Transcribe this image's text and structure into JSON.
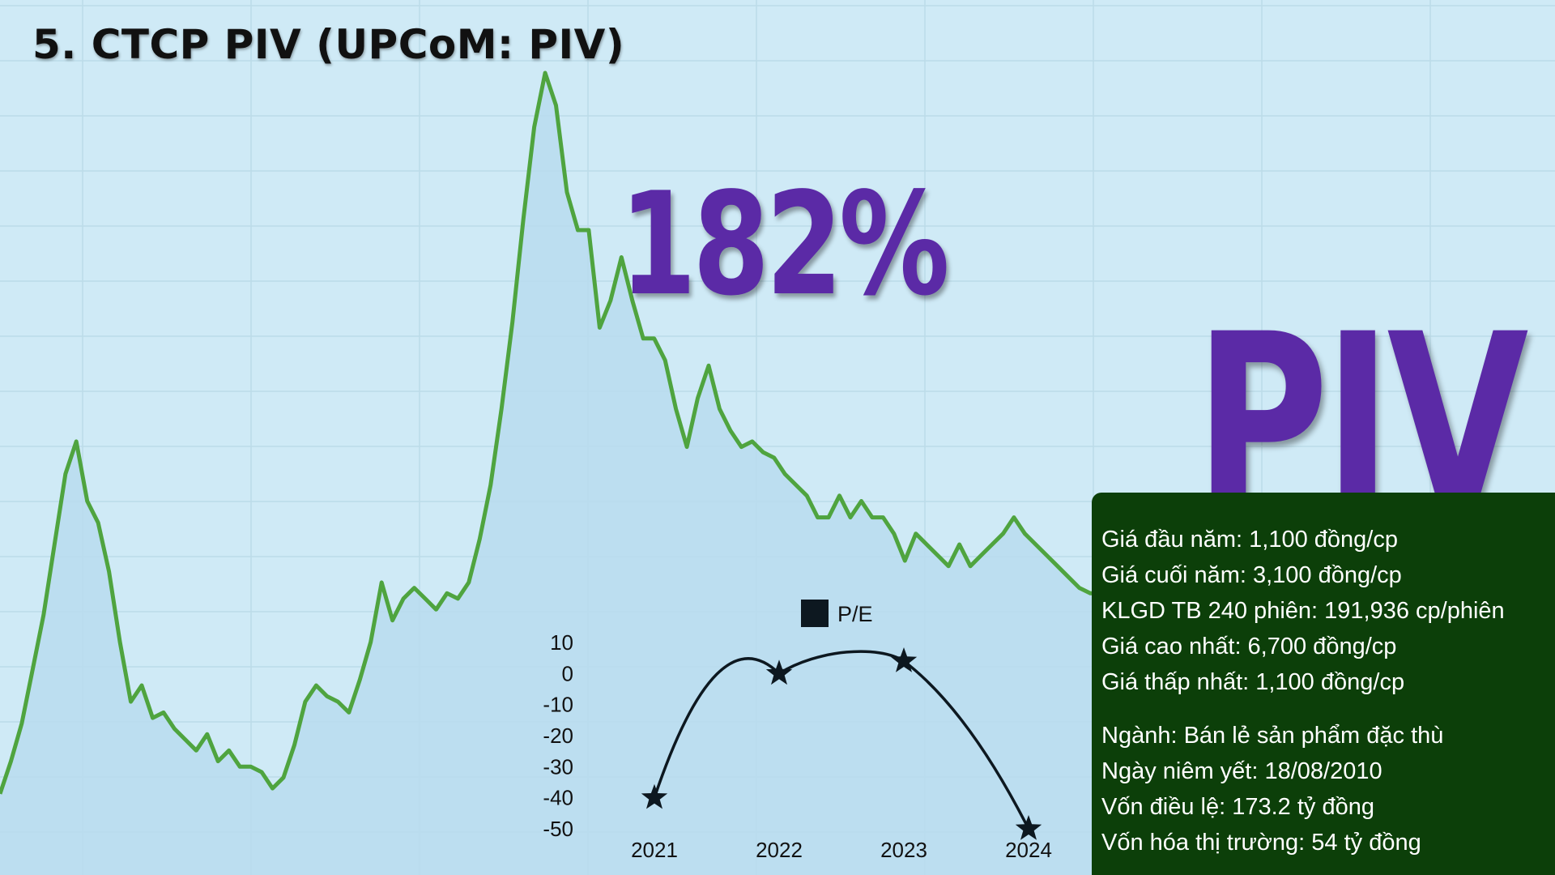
{
  "title": "5. CTCP PIV (UPCoM: PIV)",
  "highlight_percent": "182%",
  "ticker": "PIV",
  "info": {
    "lines_a": [
      "Giá đầu năm: 1,100 đồng/cp",
      "Giá cuối năm: 3,100 đồng/cp",
      "KLGD TB 240 phiên: 191,936 cp/phiên",
      "Giá cao nhất: 6,700 đồng/cp",
      "Giá thấp nhất: 1,100 đồng/cp"
    ],
    "lines_b": [
      "Ngành: Bán lẻ sản phẩm đặc thù",
      "Ngày niêm yết: 18/08/2010",
      "Vốn điều lệ: 173.2 tỷ đồng",
      "Vốn hóa thị trường: 54 tỷ đồng"
    ]
  },
  "colors": {
    "background": "#cfeaf6",
    "price_line": "#4fa43f",
    "area_fill": "#b9dcee",
    "accent_purple": "#5b2aa6",
    "info_box": "#0c3f09",
    "pe_line": "#0d1820"
  },
  "chart_data": [
    {
      "type": "area",
      "title": "",
      "xlabel": "",
      "ylabel": "",
      "grid": true,
      "y_scale": "relative (no axis printed)",
      "values": [
        0.09,
        0.15,
        0.22,
        0.32,
        0.42,
        0.55,
        0.68,
        0.74,
        0.63,
        0.59,
        0.5,
        0.37,
        0.26,
        0.29,
        0.23,
        0.24,
        0.21,
        0.19,
        0.17,
        0.2,
        0.15,
        0.17,
        0.14,
        0.14,
        0.13,
        0.1,
        0.12,
        0.18,
        0.26,
        0.29,
        0.27,
        0.26,
        0.24,
        0.3,
        0.37,
        0.48,
        0.41,
        0.45,
        0.47,
        0.45,
        0.43,
        0.46,
        0.45,
        0.48,
        0.56,
        0.66,
        0.8,
        0.96,
        1.15,
        1.32,
        1.42,
        1.36,
        1.2,
        1.13,
        1.13,
        0.95,
        1.0,
        1.08,
        1.0,
        0.93,
        0.93,
        0.89,
        0.8,
        0.73,
        0.82,
        0.88,
        0.8,
        0.76,
        0.73,
        0.74,
        0.72,
        0.71,
        0.68,
        0.66,
        0.64,
        0.6,
        0.6,
        0.64,
        0.6,
        0.63,
        0.6,
        0.6,
        0.57,
        0.52,
        0.57,
        0.55,
        0.53,
        0.51,
        0.55,
        0.51,
        0.53,
        0.55,
        0.57,
        0.6,
        0.57,
        0.55,
        0.53,
        0.51,
        0.49,
        0.47,
        0.46,
        0.46,
        0.48,
        0.48,
        0.44
      ]
    },
    {
      "type": "line",
      "title": "",
      "xlabel": "",
      "ylabel": "",
      "legend": "top-center",
      "categories": [
        "2021",
        "2022",
        "2023",
        "2024"
      ],
      "y_ticks": [
        "10",
        "0",
        "-10",
        "-20",
        "-30",
        "-40",
        "-50"
      ],
      "ylim": [
        -50,
        10
      ],
      "series": [
        {
          "name": "P/E",
          "values": [
            -40,
            0,
            4,
            -50
          ]
        }
      ]
    }
  ]
}
